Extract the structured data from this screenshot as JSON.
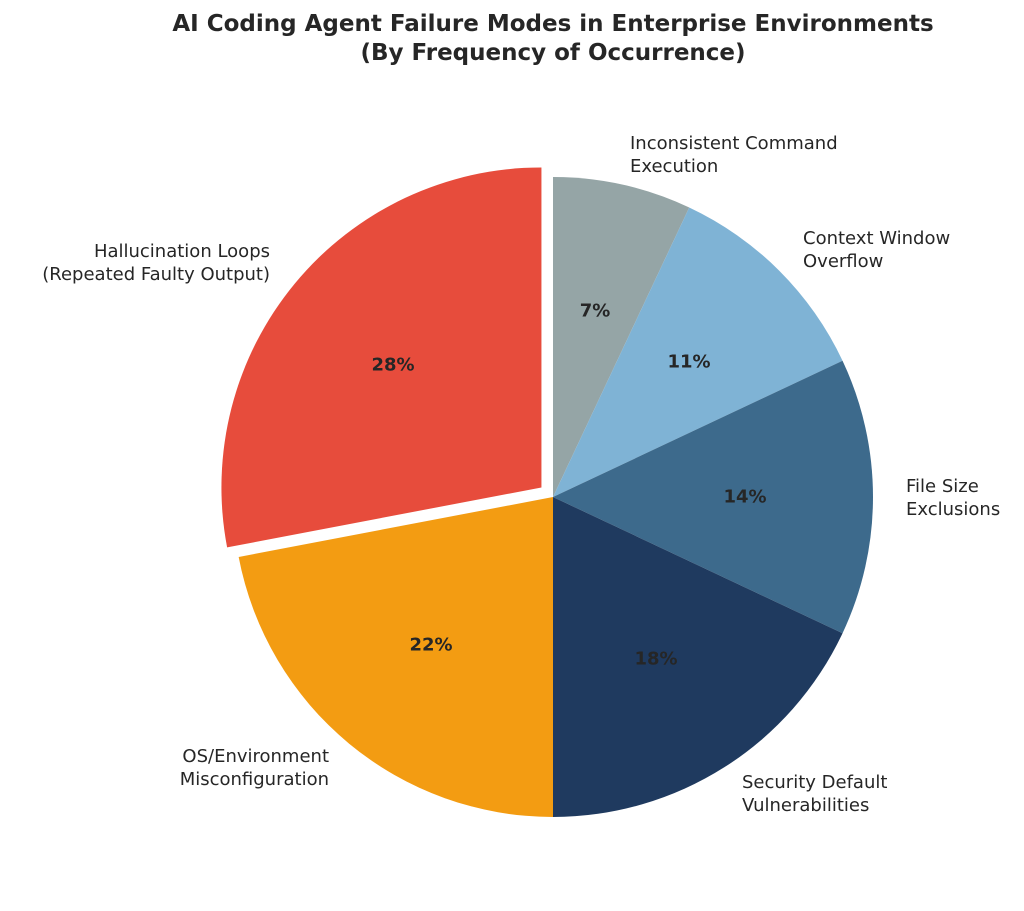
{
  "chart_data": {
    "type": "pie",
    "title": "AI Coding Agent Failure Modes in Enterprise Environments",
    "subtitle": "(By Frequency of Occurrence)",
    "start_angle": "12 o'clock, clockwise",
    "exploded": [
      "Hallucination Loops (Repeated Faulty Output)"
    ],
    "slices": [
      {
        "label_lines": [
          "Inconsistent Command",
          "Execution"
        ],
        "label": "Inconsistent Command Execution",
        "value": 7,
        "pct_label": "7%",
        "color": "#95a5a6"
      },
      {
        "label_lines": [
          "Context Window",
          "Overflow"
        ],
        "label": "Context Window Overflow",
        "value": 11,
        "pct_label": "11%",
        "color": "#7fb3d5"
      },
      {
        "label_lines": [
          "File Size",
          "Exclusions"
        ],
        "label": "File Size Exclusions",
        "value": 14,
        "pct_label": "14%",
        "color": "#3d6a8c"
      },
      {
        "label_lines": [
          "Security Default",
          "Vulnerabilities"
        ],
        "label": "Security Default Vulnerabilities",
        "value": 18,
        "pct_label": "18%",
        "color": "#1f3a5f"
      },
      {
        "label_lines": [
          "OS/Environment",
          "Misconfiguration"
        ],
        "label": "OS/Environment Misconfiguration",
        "value": 22,
        "pct_label": "22%",
        "color": "#f39c12"
      },
      {
        "label_lines": [
          "Hallucination Loops",
          "(Repeated Faulty Output)"
        ],
        "label": "Hallucination Loops (Repeated Faulty Output)",
        "value": 28,
        "pct_label": "28%",
        "color": "#e74c3c"
      }
    ]
  }
}
